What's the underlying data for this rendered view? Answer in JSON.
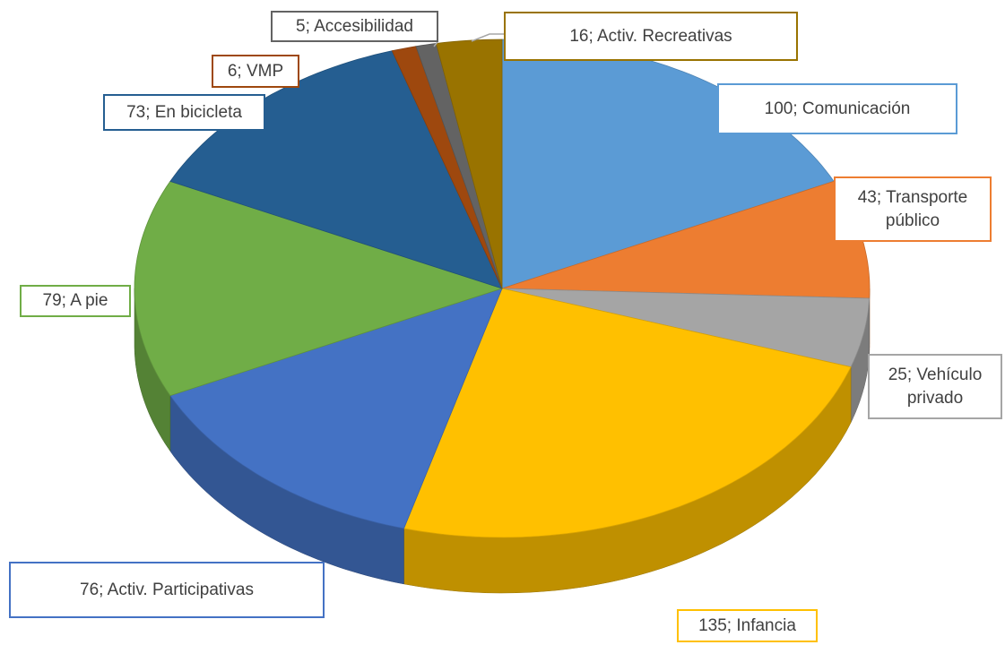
{
  "chart_data": {
    "type": "pie",
    "values": [
      100,
      43,
      25,
      135,
      76,
      79,
      73,
      6,
      5,
      16
    ],
    "value_labels": [
      "100; Comunicación",
      "43; Transporte público",
      "25; Vehículo privado",
      "135; Infancia",
      "76; Activ. Participativas",
      "79; A pie",
      "73; En bicicleta",
      "6; VMP",
      "5; Accesibilidad",
      "16; Activ. Recreativas"
    ],
    "colors": [
      "#5b9bd5",
      "#ed7d31",
      "#a5a5a5",
      "#ffc000",
      "#4472c4",
      "#70ad47",
      "#255e91",
      "#9e480e",
      "#636363",
      "#997300"
    ]
  }
}
